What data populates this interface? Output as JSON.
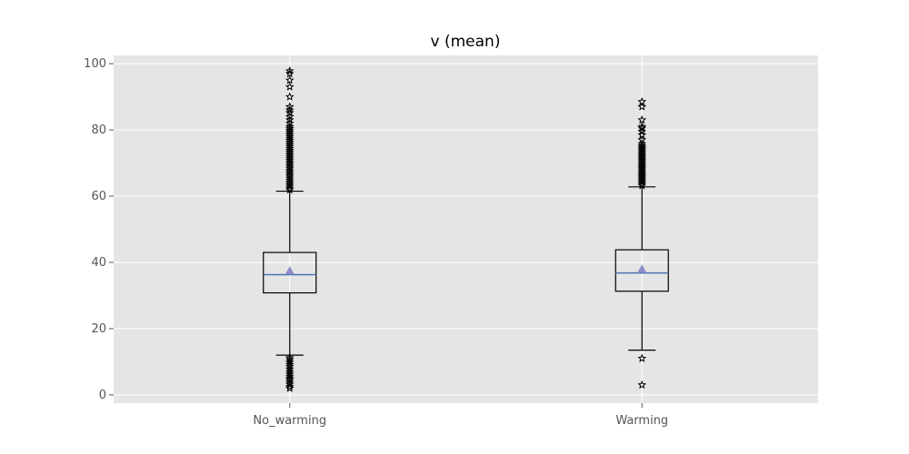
{
  "chart_data": {
    "type": "box",
    "title": "v (mean)",
    "xlabel": "",
    "ylabel": "",
    "ylim": [
      -2.5,
      102.5
    ],
    "yticks": [
      0,
      20,
      40,
      60,
      80,
      100
    ],
    "grid": true,
    "colors": {
      "plot_background": "#e5e5e5",
      "grid": "#ffffff",
      "box": "#000000",
      "median": "#4c72b0",
      "mean_marker": "#8c8cc8"
    },
    "categories": [
      "No_warming",
      "Warming"
    ],
    "series": [
      {
        "category": "No_warming",
        "whisker_low": 12.0,
        "q1": 30.8,
        "median": 36.3,
        "mean": 37.5,
        "q3": 43.0,
        "whisker_high": 61.5,
        "outliers": [
          2.0,
          2.5,
          3.2,
          3.8,
          4.5,
          5.0,
          5.6,
          6.3,
          7.0,
          7.8,
          8.6,
          9.2,
          9.9,
          10.6,
          11.2,
          61.9,
          62.4,
          63.0,
          63.6,
          64.2,
          64.8,
          65.4,
          66.0,
          66.6,
          67.2,
          67.8,
          68.4,
          69.0,
          69.6,
          70.2,
          70.8,
          71.4,
          72.0,
          72.6,
          73.2,
          73.8,
          74.4,
          75.0,
          75.6,
          76.2,
          76.8,
          77.4,
          78.0,
          78.6,
          79.2,
          79.8,
          80.4,
          81.0,
          82.0,
          83.0,
          84.0,
          85.2,
          86.0,
          87.0,
          90.0,
          93.0,
          95.0,
          97.0,
          97.8
        ]
      },
      {
        "category": "Warming",
        "whisker_low": 13.5,
        "q1": 31.3,
        "median": 36.8,
        "mean": 38.0,
        "q3": 43.8,
        "whisker_high": 62.8,
        "outliers": [
          3.0,
          11.0,
          63.2,
          63.7,
          64.2,
          64.7,
          65.2,
          65.7,
          66.2,
          66.7,
          67.2,
          67.7,
          68.2,
          68.7,
          69.2,
          69.7,
          70.2,
          70.7,
          71.2,
          71.7,
          72.2,
          72.7,
          73.2,
          73.7,
          74.2,
          74.7,
          75.2,
          75.8,
          77.0,
          78.5,
          79.5,
          80.5,
          81.0,
          83.0,
          87.0,
          88.5
        ]
      }
    ]
  }
}
